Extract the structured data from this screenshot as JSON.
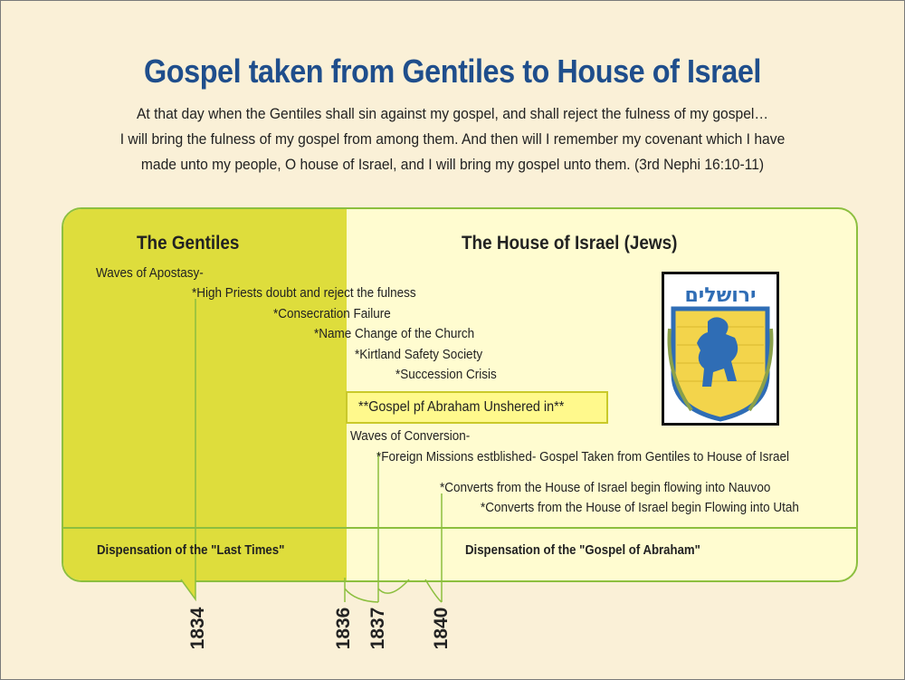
{
  "title": "Gospel taken from Gentiles to House of Israel",
  "quote": {
    "line1": "At that day when the Gentiles shall sin against my gospel, and shall reject the fulness of my gospel…",
    "line2": "I will bring the fulness of my gospel from among them.  And then will I remember my covenant which I have",
    "line3": "made unto my people, O house of Israel, and I will bring my gospel unto them. (3rd Nephi 16:10-11)"
  },
  "left_heading": "The Gentiles",
  "right_heading": "The House of Israel  (Jews)",
  "apostasy": {
    "header": "Waves of Apostasy-",
    "items": [
      "*High Priests doubt and reject the fulness",
      "*Consecration Failure",
      "*Name Change of the Church",
      "*Kirtland Safety Society",
      "*Succession Crisis"
    ]
  },
  "highlight": "**Gospel pf Abraham Unshered in**",
  "conversion": {
    "header": "Waves of Conversion-",
    "items": [
      "*Foreign Missions estblished- Gospel Taken from Gentiles to House of Israel",
      "*Converts from the House of Israel begin flowing into Nauvoo",
      "*Converts from the House of Israel begin Flowing into Utah"
    ]
  },
  "dispensations": {
    "left": "Dispensation of the \"Last Times\"",
    "right": "Dispensation of the \"Gospel of Abraham\""
  },
  "emblem": {
    "hebrew": "ירושלים",
    "name": "jerusalem-emblem"
  },
  "years": [
    "1834",
    "1836",
    "1837",
    "1840"
  ],
  "colors": {
    "title": "#1f4e8c",
    "gentile_fill": "#dedd3c",
    "israel_fill": "#fffcd0",
    "border": "#8cbf3f",
    "highlight_fill": "#fff98c",
    "background": "#faf0d7"
  }
}
